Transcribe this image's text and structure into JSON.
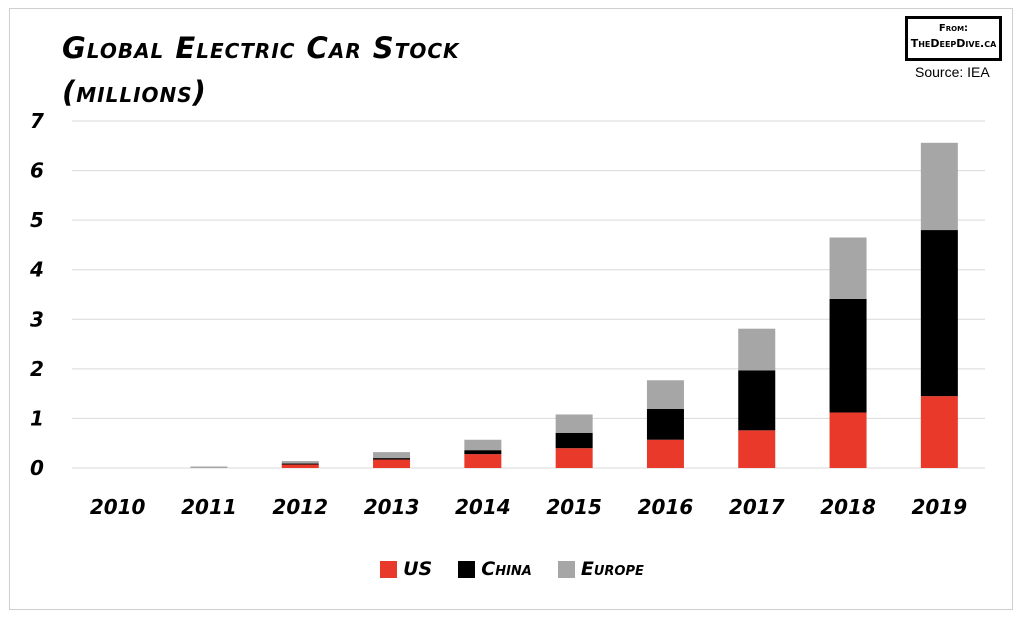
{
  "header": {
    "title_line1": "Global Electric Car Stock",
    "title_line2": "(millions)",
    "badge_from": "From:",
    "badge_site": "TheDeepDive.ca",
    "source": "Source: IEA"
  },
  "chart_data": {
    "type": "bar",
    "stacked": true,
    "title": "Global Electric Car Stock (millions)",
    "categories": [
      "2010",
      "2011",
      "2012",
      "2013",
      "2014",
      "2015",
      "2016",
      "2017",
      "2018",
      "2019"
    ],
    "yticks": [
      "0",
      "1",
      "2",
      "3",
      "4",
      "5",
      "6",
      "7"
    ],
    "ylim": [
      0,
      7
    ],
    "grid": true,
    "legend_position": "bottom",
    "series": [
      {
        "name": "US",
        "color": "#e8392b",
        "values": [
          0.0,
          0.0,
          0.07,
          0.17,
          0.28,
          0.4,
          0.57,
          0.76,
          1.12,
          1.45
        ]
      },
      {
        "name": "China",
        "color": "#000000",
        "values": [
          0.0,
          0.0,
          0.02,
          0.03,
          0.08,
          0.31,
          0.62,
          1.21,
          2.29,
          3.35
        ]
      },
      {
        "name": "Europe",
        "color": "#a6a6a6",
        "values": [
          0.0,
          0.03,
          0.05,
          0.12,
          0.21,
          0.37,
          0.58,
          0.84,
          1.24,
          1.76
        ]
      }
    ]
  }
}
